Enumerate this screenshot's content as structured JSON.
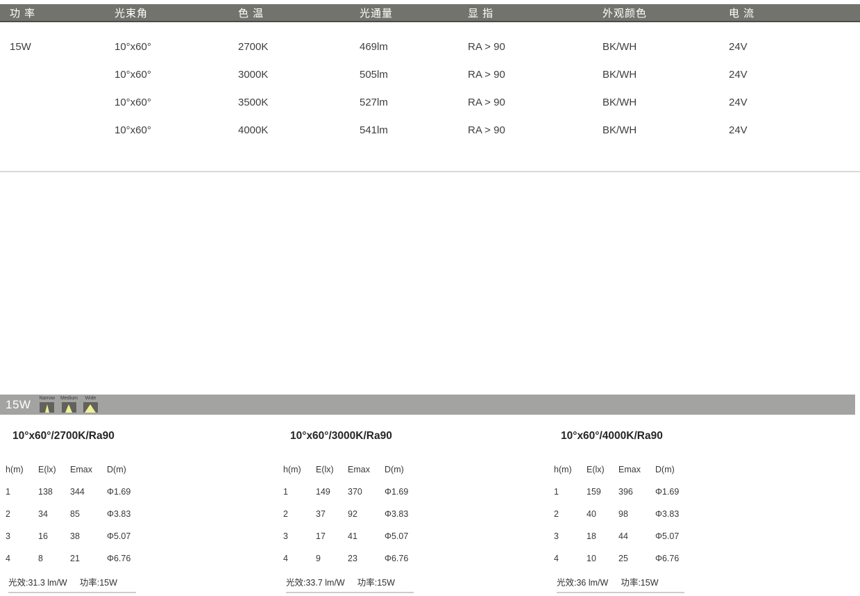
{
  "spec_table": {
    "headers": [
      "功 率",
      "光束角",
      "色 温",
      "光通量",
      "显 指",
      "外观颜色",
      "电 流"
    ],
    "rows": [
      [
        "15W",
        "10°x60°",
        "2700K",
        "469lm",
        "RA > 90",
        "BK/WH",
        "24V"
      ],
      [
        "",
        "10°x60°",
        "3000K",
        "505lm",
        "RA > 90",
        "BK/WH",
        "24V"
      ],
      [
        "",
        "10°x60°",
        "3500K",
        "527lm",
        "RA > 90",
        "BK/WH",
        "24V"
      ],
      [
        "",
        "10°x60°",
        "4000K",
        "541lm",
        "RA > 90",
        "BK/WH",
        "24V"
      ]
    ]
  },
  "beam_bar": {
    "power_label": "15W",
    "icons": [
      {
        "label": "Narrow",
        "size": "narrow",
        "icon": "narrow-beam-icon"
      },
      {
        "label": "Medium",
        "size": "medium",
        "icon": "medium-beam-icon"
      },
      {
        "label": "Wide",
        "size": "wide",
        "icon": "wide-beam-icon"
      }
    ]
  },
  "photometric_tables": [
    {
      "title": "10°x60°/2700K/Ra90",
      "columns": [
        "h(m)",
        "E(lx)",
        "Emax",
        "D(m)"
      ],
      "rows": [
        [
          "1",
          "138",
          "344",
          "Φ1.69"
        ],
        [
          "2",
          "34",
          "85",
          "Φ3.83"
        ],
        [
          "3",
          "16",
          "38",
          "Φ5.07"
        ],
        [
          "4",
          "8",
          "21",
          "Φ6.76"
        ]
      ],
      "efficacy": "光效:31.3 lm/W",
      "power": "功率:15W"
    },
    {
      "title": "10°x60°/3000K/Ra90",
      "columns": [
        "h(m)",
        "E(lx)",
        "Emax",
        "D(m)"
      ],
      "rows": [
        [
          "1",
          "149",
          "370",
          "Φ1.69"
        ],
        [
          "2",
          "37",
          "92",
          "Φ3.83"
        ],
        [
          "3",
          "17",
          "41",
          "Φ5.07"
        ],
        [
          "4",
          "9",
          "23",
          "Φ6.76"
        ]
      ],
      "efficacy": "光效:33.7 lm/W",
      "power": "功率:15W"
    },
    {
      "title": "10°x60°/4000K/Ra90",
      "columns": [
        "h(m)",
        "E(lx)",
        "Emax",
        "D(m)"
      ],
      "rows": [
        [
          "1",
          "159",
          "396",
          "Φ1.69"
        ],
        [
          "2",
          "40",
          "98",
          "Φ3.83"
        ],
        [
          "3",
          "18",
          "44",
          "Φ5.07"
        ],
        [
          "4",
          "10",
          "25",
          "Φ6.76"
        ]
      ],
      "efficacy": "光效:36 lm/W",
      "power": "功率:15W"
    }
  ],
  "colors": {
    "header_bar": "#73736d",
    "header_bar_border": "#4b4b47",
    "header_text": "#ffffff",
    "body_text": "#3e3e3e",
    "divider": "#d9d9d9",
    "beam_bar": "#a3a3a2",
    "beam_icon_box": "#62625c",
    "beam_icon_beam": "#eef096",
    "footer_underline": "#cccccc"
  }
}
